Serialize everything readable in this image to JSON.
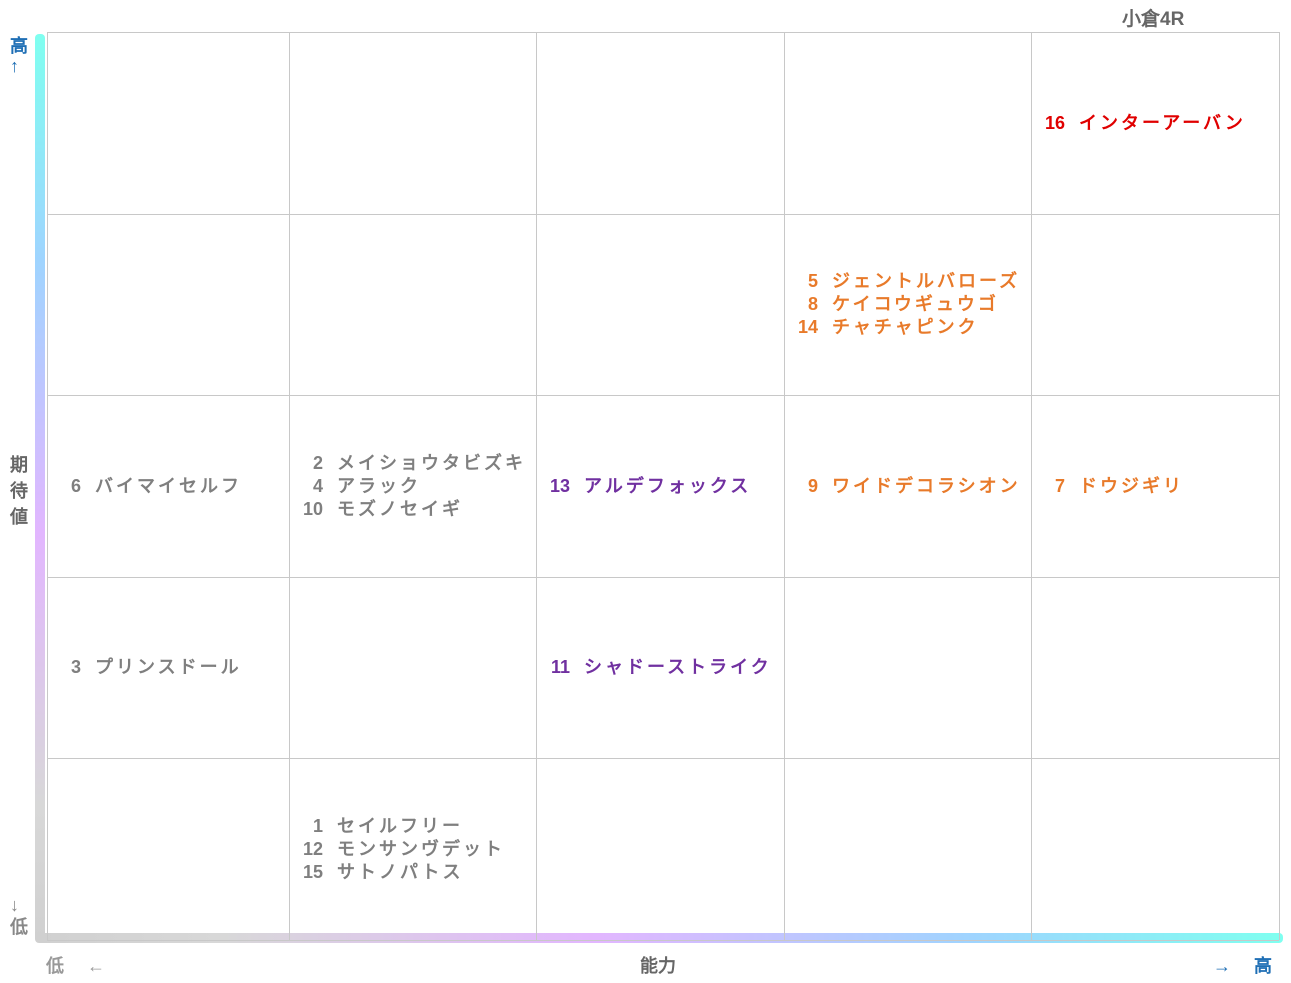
{
  "title": "小倉4R",
  "y_axis": {
    "label": "期待値",
    "high": "高↑",
    "low": "↓低"
  },
  "x_axis": {
    "label": "能力",
    "low": "低 ←",
    "high": "→ 高"
  },
  "rows": [
    [
      null,
      null,
      null,
      null,
      {
        "color": "#e00000",
        "entries": [
          {
            "num": "16",
            "name": "インターアーバン"
          }
        ]
      }
    ],
    [
      null,
      null,
      null,
      {
        "color": "#e87a2a",
        "entries": [
          {
            "num": "5",
            "name": "ジェントルバローズ"
          },
          {
            "num": "8",
            "name": "ケイコウギュウゴ"
          },
          {
            "num": "14",
            "name": "チャチャピンク"
          }
        ]
      },
      null
    ],
    [
      {
        "color": "#7f7f7f",
        "entries": [
          {
            "num": "6",
            "name": "バイマイセルフ"
          }
        ]
      },
      {
        "color": "#7f7f7f",
        "entries": [
          {
            "num": "2",
            "name": "メイショウタビズキ"
          },
          {
            "num": "4",
            "name": "アラック"
          },
          {
            "num": "10",
            "name": "モズノセイギ"
          }
        ]
      },
      {
        "color": "#7030a0",
        "entries": [
          {
            "num": "13",
            "name": "アルデフォックス"
          }
        ]
      },
      {
        "color": "#e87a2a",
        "entries": [
          {
            "num": "9",
            "name": "ワイドデコラシオン"
          }
        ]
      },
      {
        "color": "#e87a2a",
        "entries": [
          {
            "num": "7",
            "name": "ドウジギリ"
          }
        ]
      }
    ],
    [
      {
        "color": "#7f7f7f",
        "entries": [
          {
            "num": "3",
            "name": "プリンスドール"
          }
        ]
      },
      null,
      {
        "color": "#7030a0",
        "entries": [
          {
            "num": "11",
            "name": "シャドーストライク"
          }
        ]
      },
      null,
      null
    ],
    [
      null,
      {
        "color": "#7f7f7f",
        "entries": [
          {
            "num": "1",
            "name": "セイルフリー"
          },
          {
            "num": "12",
            "name": "モンサンヴデット"
          },
          {
            "num": "15",
            "name": "サトノパトス"
          }
        ]
      },
      null,
      null,
      null
    ]
  ]
}
